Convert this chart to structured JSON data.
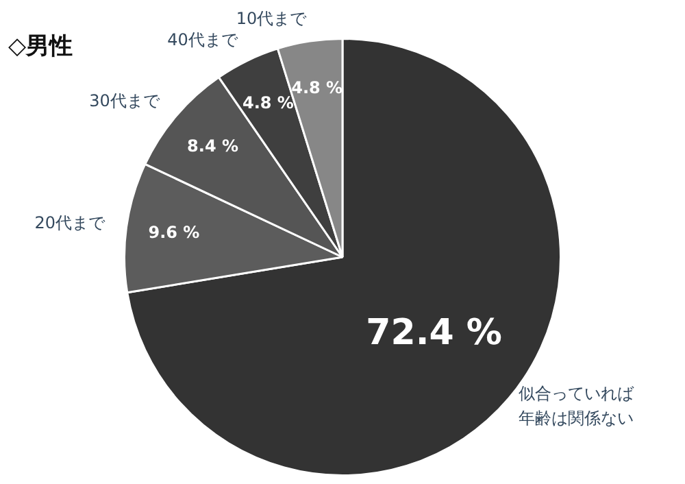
{
  "chart_data": {
    "type": "pie",
    "title": "◇男性",
    "categories": [
      "似合っていれば年齢は関係ない",
      "20代まで",
      "30代まで",
      "40代まで",
      "10代まで"
    ],
    "values": [
      72.4,
      9.6,
      8.4,
      4.8,
      4.8
    ],
    "colors": [
      "#333333",
      "#5c5c5c",
      "#555555",
      "#3f3f3f",
      "#878787"
    ],
    "value_labels": [
      "72.4 %",
      "9.6 %",
      "8.4 %",
      "4.8 %",
      "4.8 %"
    ],
    "legend": false
  }
}
